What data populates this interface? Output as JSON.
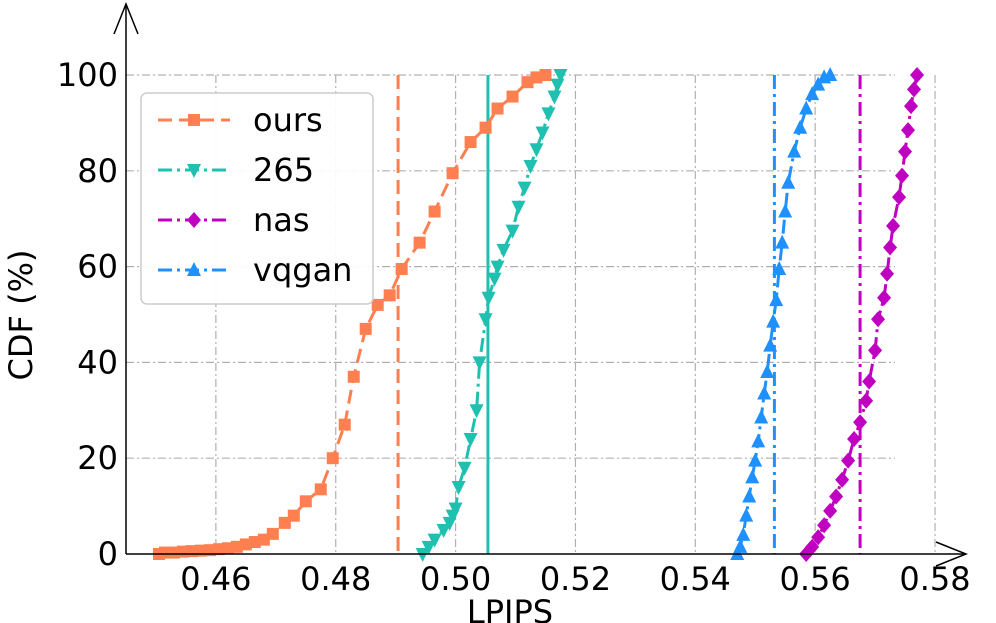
{
  "chart_data": {
    "type": "line",
    "title": "",
    "xlabel": "LPIPS",
    "ylabel": "CDF (%)",
    "xlim": [
      0.445,
      0.58
    ],
    "ylim": [
      0,
      100
    ],
    "x_ticks": [
      0.46,
      0.48,
      0.5,
      0.52,
      0.54,
      0.56,
      0.58
    ],
    "x_tick_labels": [
      "0.46",
      "0.48",
      "0.50",
      "0.52",
      "0.54",
      "0.56",
      "0.58"
    ],
    "y_ticks": [
      0,
      20,
      40,
      60,
      80,
      100
    ],
    "y_tick_labels": [
      "0",
      "20",
      "40",
      "60",
      "80",
      "100"
    ],
    "grid": true,
    "legend_position": "top-left",
    "series": [
      {
        "name": "ours",
        "color": "#FF7F50",
        "marker": "square",
        "linestyle": "dashed",
        "mean_line": 0.4904,
        "mean_linestyle": "dashed",
        "points": [
          [
            0.4505,
            0
          ],
          [
            0.4515,
            0.3
          ],
          [
            0.453,
            0.3
          ],
          [
            0.4545,
            0.5
          ],
          [
            0.456,
            0.6
          ],
          [
            0.4575,
            0.7
          ],
          [
            0.459,
            0.8
          ],
          [
            0.4605,
            1.0
          ],
          [
            0.462,
            1.2
          ],
          [
            0.4635,
            1.5
          ],
          [
            0.465,
            2.0
          ],
          [
            0.4665,
            2.5
          ],
          [
            0.468,
            3.0
          ],
          [
            0.4695,
            4.2
          ],
          [
            0.4715,
            6.5
          ],
          [
            0.473,
            8.0
          ],
          [
            0.475,
            11.0
          ],
          [
            0.4775,
            13.5
          ],
          [
            0.4795,
            20.0
          ],
          [
            0.4815,
            27.0
          ],
          [
            0.483,
            37.0
          ],
          [
            0.485,
            47.0
          ],
          [
            0.487,
            52.0
          ],
          [
            0.489,
            54.0
          ],
          [
            0.491,
            59.5
          ],
          [
            0.494,
            65.0
          ],
          [
            0.4965,
            71.5
          ],
          [
            0.4995,
            79.5
          ],
          [
            0.5025,
            86.0
          ],
          [
            0.505,
            89.0
          ],
          [
            0.507,
            93.0
          ],
          [
            0.5095,
            95.5
          ],
          [
            0.512,
            98.5
          ],
          [
            0.5135,
            99.5
          ],
          [
            0.515,
            100.0
          ]
        ]
      },
      {
        "name": "265",
        "color": "#20C0B0",
        "marker": "triangle-down",
        "linestyle": "dashdot",
        "mean_line": 0.5054,
        "mean_linestyle": "solid",
        "points": [
          [
            0.4945,
            0
          ],
          [
            0.4955,
            1.5
          ],
          [
            0.4965,
            3.0
          ],
          [
            0.498,
            5.0
          ],
          [
            0.499,
            6.5
          ],
          [
            0.4995,
            8.0
          ],
          [
            0.5,
            9.5
          ],
          [
            0.5005,
            14.0
          ],
          [
            0.5015,
            18.0
          ],
          [
            0.5025,
            24.0
          ],
          [
            0.5035,
            30.0
          ],
          [
            0.504,
            40.0
          ],
          [
            0.505,
            49.0
          ],
          [
            0.5055,
            53.5
          ],
          [
            0.5065,
            57.5
          ],
          [
            0.507,
            60.0
          ],
          [
            0.508,
            63.5
          ],
          [
            0.5095,
            67.5
          ],
          [
            0.5105,
            72.5
          ],
          [
            0.5115,
            76.5
          ],
          [
            0.5125,
            81.0
          ],
          [
            0.5135,
            84.5
          ],
          [
            0.5145,
            88.0
          ],
          [
            0.5155,
            92.0
          ],
          [
            0.5165,
            95.5
          ],
          [
            0.517,
            98.0
          ],
          [
            0.5175,
            100.0
          ]
        ]
      },
      {
        "name": "nas",
        "color": "#C000C0",
        "marker": "diamond",
        "linestyle": "dashdot",
        "mean_line": 0.5675,
        "mean_linestyle": "dashdot",
        "points": [
          [
            0.5585,
            0
          ],
          [
            0.5595,
            1.5
          ],
          [
            0.5605,
            3.5
          ],
          [
            0.5615,
            6.0
          ],
          [
            0.5625,
            9.0
          ],
          [
            0.5635,
            12.0
          ],
          [
            0.5645,
            15.5
          ],
          [
            0.5655,
            19.5
          ],
          [
            0.5665,
            24.0
          ],
          [
            0.5675,
            27.5
          ],
          [
            0.5685,
            32.0
          ],
          [
            0.569,
            36.0
          ],
          [
            0.57,
            42.5
          ],
          [
            0.5705,
            49.0
          ],
          [
            0.5715,
            53.5
          ],
          [
            0.572,
            58.5
          ],
          [
            0.5725,
            64.0
          ],
          [
            0.573,
            68.5
          ],
          [
            0.574,
            74.5
          ],
          [
            0.5745,
            79.0
          ],
          [
            0.575,
            84.0
          ],
          [
            0.5755,
            88.5
          ],
          [
            0.576,
            93.5
          ],
          [
            0.5765,
            97.0
          ],
          [
            0.577,
            100.0
          ]
        ]
      },
      {
        "name": "vqgan",
        "color": "#1E90FF",
        "marker": "triangle-up",
        "linestyle": "dashdot",
        "mean_line": 0.5532,
        "mean_linestyle": "dashdot",
        "points": [
          [
            0.547,
            0
          ],
          [
            0.5475,
            1.5
          ],
          [
            0.548,
            4.0
          ],
          [
            0.5485,
            8.0
          ],
          [
            0.549,
            12.0
          ],
          [
            0.5495,
            16.0
          ],
          [
            0.55,
            19.5
          ],
          [
            0.5505,
            23.5
          ],
          [
            0.551,
            28.5
          ],
          [
            0.5515,
            33.5
          ],
          [
            0.552,
            38.0
          ],
          [
            0.5525,
            43.5
          ],
          [
            0.553,
            48.5
          ],
          [
            0.5535,
            53.0
          ],
          [
            0.554,
            59.5
          ],
          [
            0.5545,
            65.0
          ],
          [
            0.555,
            71.5
          ],
          [
            0.5555,
            77.5
          ],
          [
            0.5565,
            84.0
          ],
          [
            0.5575,
            89.0
          ],
          [
            0.5585,
            93.0
          ],
          [
            0.5595,
            96.0
          ],
          [
            0.5605,
            98.0
          ],
          [
            0.5615,
            99.5
          ],
          [
            0.5625,
            100.0
          ]
        ]
      }
    ]
  }
}
